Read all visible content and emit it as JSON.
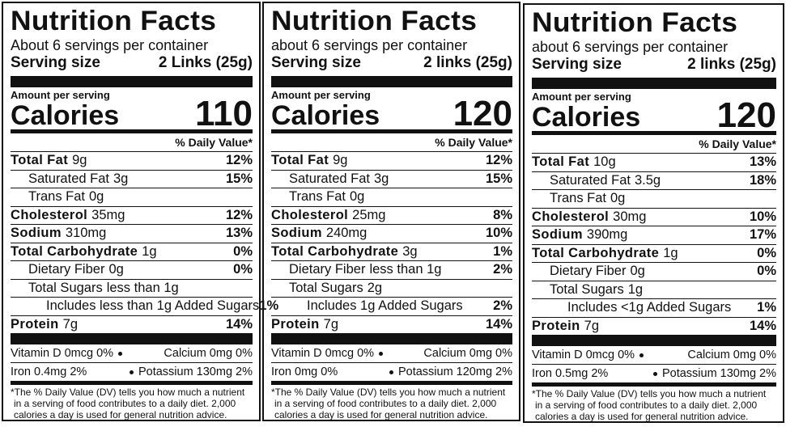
{
  "labels": [
    {
      "title": "Nutrition Facts",
      "servings": "About 6 servings per container",
      "serving_size_label": "Serving size",
      "serving_size": "2 Links (25g)",
      "amount_per_serving": "Amount per serving",
      "calories_label": "Calories",
      "calories": "110",
      "daily_value_header": "% Daily Value*",
      "nutrients": [
        {
          "name": "Total Fat",
          "amount": "9g",
          "dv": "12%",
          "sub": [
            {
              "name": "Saturated Fat",
              "amount": "3g",
              "dv": "15%"
            },
            {
              "name": "Trans Fat",
              "amount": "0g"
            }
          ]
        },
        {
          "name": "Cholesterol",
          "amount": "35mg",
          "dv": "12%"
        },
        {
          "name": "Sodium",
          "amount": "310mg",
          "dv": "13%"
        },
        {
          "name": "Total Carbohydrate",
          "amount": "1g",
          "dv": "0%",
          "sub": [
            {
              "name": "Dietary Fiber",
              "amount": "0g",
              "dv": "0%"
            },
            {
              "name": "Total Sugars",
              "amount": "less than 1g",
              "sub": [
                {
                  "name": "Includes less than 1g Added Sugars",
                  "dv": "1%"
                }
              ]
            }
          ]
        },
        {
          "name": "Protein",
          "amount": "7g",
          "dv": "14%"
        }
      ],
      "vitamins": [
        {
          "left": "Vitamin D 0mcg 0%",
          "right": "Calcium 0mg 0%"
        },
        {
          "left": "Iron 0.4mg 2%",
          "right": "Potassium 130mg 2%"
        }
      ],
      "footnote": [
        "*The % Daily Value (DV) tells you how much a nutrient",
        "in a serving of food contributes to a daily diet. 2,000",
        "calories a day is used for general nutrition advice."
      ]
    },
    {
      "title": "Nutrition Facts",
      "servings": "about 6 servings per container",
      "serving_size_label": "Serving size",
      "serving_size": "2 links (25g)",
      "amount_per_serving": "Amount per serving",
      "calories_label": "Calories",
      "calories": "120",
      "daily_value_header": "% Daily Value*",
      "nutrients": [
        {
          "name": "Total Fat",
          "amount": "9g",
          "dv": "12%",
          "sub": [
            {
              "name": "Saturated Fat",
              "amount": "3g",
              "dv": "15%"
            },
            {
              "name": "Trans Fat",
              "amount": "0g"
            }
          ]
        },
        {
          "name": "Cholesterol",
          "amount": "25mg",
          "dv": "8%"
        },
        {
          "name": "Sodium",
          "amount": "240mg",
          "dv": "10%"
        },
        {
          "name": "Total Carbohydrate",
          "amount": "3g",
          "dv": "1%",
          "sub": [
            {
              "name": "Dietary Fiber",
              "amount": "less than 1g",
              "dv": "2%"
            },
            {
              "name": "Total Sugars",
              "amount": "2g",
              "sub": [
                {
                  "name": "Includes 1g Added Sugars",
                  "dv": "2%"
                }
              ]
            }
          ]
        },
        {
          "name": "Protein",
          "amount": "7g",
          "dv": "14%"
        }
      ],
      "vitamins": [
        {
          "left": "Vitamin D 0mcg 0%",
          "right": "Calcium 0mg 0%"
        },
        {
          "left": "Iron 0mg 0%",
          "right": "Potassium 120mg 2%"
        }
      ],
      "footnote": [
        "*The % Daily Value (DV) tells you how much a nutrient",
        "in a serving of food contributes to a daily diet. 2,000",
        "calories a day is used for general nutrition advice."
      ]
    },
    {
      "title": "Nutrition Facts",
      "servings": "about 6 servings per container",
      "serving_size_label": "Serving size",
      "serving_size": "2 links (25g)",
      "amount_per_serving": "Amount per serving",
      "calories_label": "Calories",
      "calories": "120",
      "daily_value_header": "% Daily Value*",
      "nutrients": [
        {
          "name": "Total Fat",
          "amount": "10g",
          "dv": "13%",
          "sub": [
            {
              "name": "Saturated Fat",
              "amount": "3.5g",
              "dv": "18%"
            },
            {
              "name": "Trans Fat",
              "amount": "0g"
            }
          ]
        },
        {
          "name": "Cholesterol",
          "amount": "30mg",
          "dv": "10%"
        },
        {
          "name": "Sodium",
          "amount": "390mg",
          "dv": "17%"
        },
        {
          "name": "Total Carbohydrate",
          "amount": "1g",
          "dv": "0%",
          "sub": [
            {
              "name": "Dietary Fiber",
              "amount": "0g",
              "dv": "0%"
            },
            {
              "name": "Total Sugars",
              "amount": "1g",
              "sub": [
                {
                  "name": "Includes <1g Added Sugars",
                  "dv": "1%"
                }
              ]
            }
          ]
        },
        {
          "name": "Protein",
          "amount": "7g",
          "dv": "14%"
        }
      ],
      "vitamins": [
        {
          "left": "Vitamin D 0mcg 0%",
          "right": "Calcium 0mg 0%"
        },
        {
          "left": "Iron 0.5mg 2%",
          "right": "Potassium 130mg 2%"
        }
      ],
      "footnote": [
        "*The % Daily Value (DV) tells you how much a nutrient",
        "in a serving of food contributes to a daily diet. 2,000",
        "calories a day is used for general nutrition advice."
      ]
    }
  ]
}
